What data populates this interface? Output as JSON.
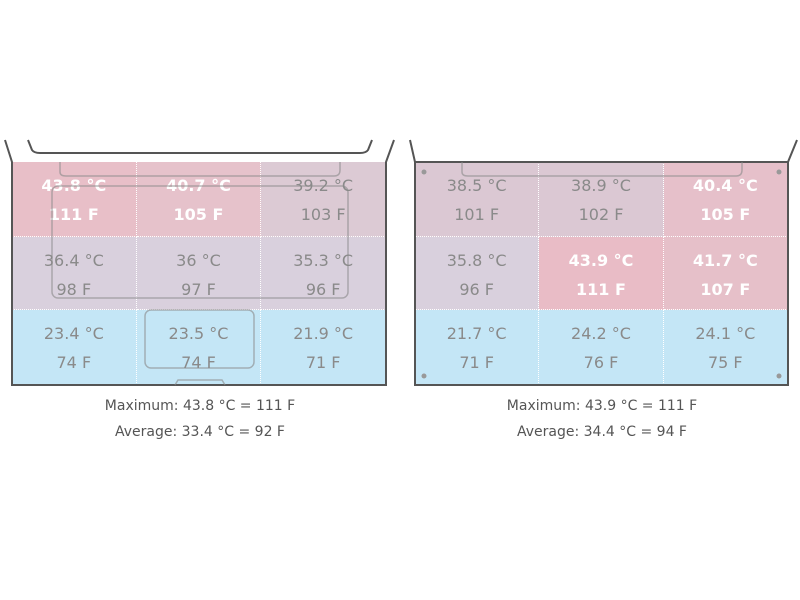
{
  "panels": [
    {
      "rows": [
        [
          {
            "celsius": "43.8 °C",
            "fahrenheit": "111 F"
          },
          {
            "celsius": "40.7 °C",
            "fahrenheit": "105 F"
          },
          {
            "celsius": "39.2 °C",
            "fahrenheit": "103 F"
          }
        ],
        [
          {
            "celsius": "36.4 °C",
            "fahrenheit": "98 F"
          },
          {
            "celsius": "36 °C",
            "fahrenheit": "97 F"
          },
          {
            "celsius": "35.3 °C",
            "fahrenheit": "96 F"
          }
        ],
        [
          {
            "celsius": "23.4 °C",
            "fahrenheit": "74 F"
          },
          {
            "celsius": "23.5 °C",
            "fahrenheit": "74 F"
          },
          {
            "celsius": "21.9 °C",
            "fahrenheit": "71 F"
          }
        ]
      ],
      "maximum": "Maximum: 43.8 °C = 111 F",
      "average": "Average: 33.4 °C = 92 F"
    },
    {
      "rows": [
        [
          {
            "celsius": "38.5 °C",
            "fahrenheit": "101 F"
          },
          {
            "celsius": "38.9 °C",
            "fahrenheit": "102 F"
          },
          {
            "celsius": "40.4 °C",
            "fahrenheit": "105 F"
          }
        ],
        [
          {
            "celsius": "35.8 °C",
            "fahrenheit": "96 F"
          },
          {
            "celsius": "43.9 °C",
            "fahrenheit": "111 F"
          },
          {
            "celsius": "41.7 °C",
            "fahrenheit": "107 F"
          }
        ],
        [
          {
            "celsius": "21.7 °C",
            "fahrenheit": "71 F"
          },
          {
            "celsius": "24.2 °C",
            "fahrenheit": "76 F"
          },
          {
            "celsius": "24.1 °C",
            "fahrenheit": "75 F"
          }
        ]
      ],
      "maximum": "Maximum: 43.9 °C = 111 F",
      "average": "Average: 34.4 °C = 94 F"
    }
  ]
}
